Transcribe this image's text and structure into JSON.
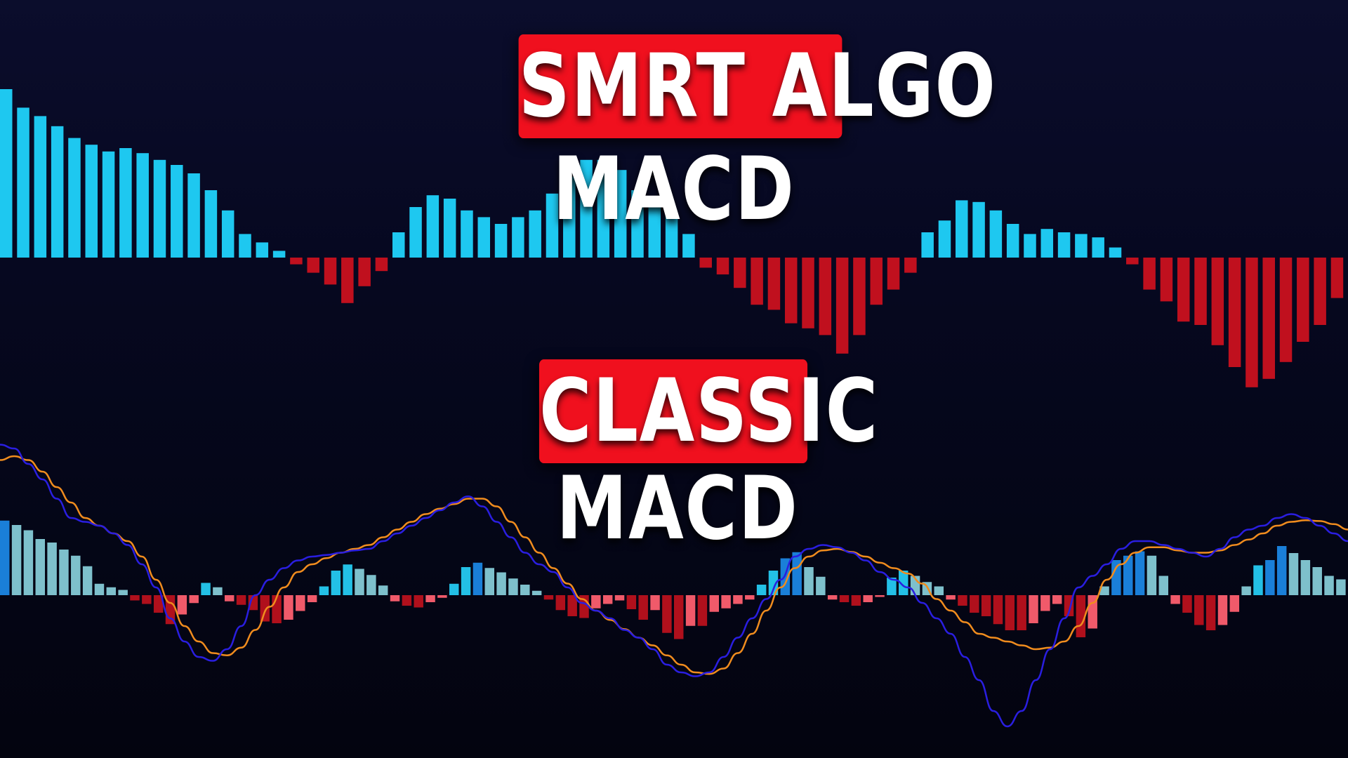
{
  "labels": {
    "top_title": "SMRT ALGO",
    "top_subtitle": "MACD",
    "bottom_title": "CLASSIC",
    "bottom_subtitle": "MACD"
  },
  "colors": {
    "positive_bar": "#1ec8f0",
    "negative_bar": "#c0101e",
    "classic_pos_strong": "#1a7fd8",
    "classic_pos": "#23c0e6",
    "classic_pos_weak": "#7ec0cc",
    "classic_neg_strong": "#b0101c",
    "classic_neg_weak": "#f05a6a",
    "macd_line": "#2a1ee0",
    "signal_line": "#f08c1e",
    "label_background": "#f0101e"
  },
  "chart_data": [
    {
      "type": "bar",
      "series": [
        {
          "name": "",
          "values": [
            100,
            89,
            84,
            78,
            71,
            67,
            63,
            65,
            62,
            58,
            55,
            50,
            40,
            28,
            14,
            9,
            4,
            -4,
            -9,
            -16,
            -27,
            -17,
            -8,
            15,
            30,
            37,
            35,
            28,
            24,
            20,
            24,
            28,
            38,
            48,
            58,
            58,
            52,
            40,
            32,
            25,
            14,
            -6,
            -10,
            -18,
            -28,
            -31,
            -39,
            -42,
            -46,
            -57,
            -46,
            -28,
            -19,
            -9,
            15,
            22,
            34,
            33,
            28,
            20,
            14,
            17,
            15,
            14,
            12,
            6,
            -4,
            -19,
            -26,
            -38,
            -40,
            -52,
            -65,
            -77,
            -72,
            -62,
            -50,
            -40,
            -24
          ]
        }
      ],
      "colors": [
        "#1ec8f0",
        "#c0101e"
      ]
    },
    {
      "type": "bar",
      "series": [
        {
          "name": "",
          "values": [
            85,
            80,
            74,
            64,
            60,
            52,
            45,
            33,
            13,
            9,
            6,
            -6,
            -10,
            -20,
            -33,
            -22,
            -9,
            14,
            9,
            -7,
            -11,
            -17,
            -30,
            -32,
            -28,
            -18,
            -8,
            10,
            28,
            35,
            30,
            23,
            11,
            -7,
            -12,
            -14,
            -8,
            -3,
            13,
            32,
            37,
            31,
            26,
            19,
            12,
            5,
            -5,
            -17,
            -24,
            -26,
            -15,
            -10,
            -6,
            -16,
            -28,
            -17,
            -43,
            -50,
            -35,
            -35,
            -19,
            -15,
            -10,
            -5,
            12,
            28,
            42,
            49,
            32,
            21,
            -5,
            -8,
            -12,
            -8,
            -2,
            20,
            28,
            22,
            15,
            10,
            -5,
            -12,
            -20,
            -24,
            -33,
            -40,
            -40,
            -32,
            -18,
            -10,
            -24,
            -48,
            -38,
            10,
            40,
            45,
            50,
            45,
            22,
            -10,
            -20,
            -34,
            -40,
            -34,
            -19,
            10,
            34,
            40,
            56,
            48,
            40,
            32,
            22,
            18
          ]
        },
        {
          "name": "",
          "type": "line",
          "values": [
            195,
            190,
            170,
            150,
            125,
            100,
            95,
            90,
            80,
            65,
            40,
            10,
            -30,
            -60,
            -80,
            -85,
            -70,
            -40,
            0,
            20,
            35,
            45,
            50,
            52,
            55,
            58,
            60,
            70,
            80,
            90,
            100,
            110,
            120,
            128,
            115,
            95,
            75,
            55,
            40,
            30,
            10,
            -10,
            -20,
            -30,
            -45,
            -55,
            -70,
            -90,
            -100,
            -105,
            -100,
            -80,
            -55,
            -30,
            -5,
            20,
            50,
            60,
            65,
            62,
            55,
            45,
            30,
            20,
            10,
            -10,
            -30,
            -50,
            -80,
            -110,
            -150,
            -170,
            -150,
            -110,
            -70,
            -30,
            10,
            25,
            40,
            60,
            70,
            70,
            65,
            60,
            55,
            50,
            60,
            75,
            85,
            90,
            100,
            105,
            100,
            90,
            80,
            70
          ]
        },
        {
          "name": "",
          "type": "line",
          "values": [
            175,
            180,
            175,
            160,
            140,
            120,
            100,
            90,
            80,
            70,
            50,
            20,
            -10,
            -40,
            -60,
            -75,
            -78,
            -68,
            -45,
            -15,
            10,
            30,
            40,
            48,
            55,
            60,
            65,
            75,
            85,
            95,
            105,
            112,
            118,
            125,
            125,
            115,
            95,
            75,
            55,
            35,
            15,
            -5,
            -20,
            -32,
            -44,
            -55,
            -65,
            -78,
            -90,
            -100,
            -102,
            -95,
            -75,
            -50,
            -20,
            10,
            35,
            50,
            58,
            60,
            56,
            50,
            42,
            35,
            28,
            15,
            -5,
            -20,
            -35,
            -50,
            -55,
            -60,
            -65,
            -70,
            -68,
            -60,
            -40,
            -10,
            20,
            40,
            55,
            62,
            62,
            58,
            55,
            55,
            58,
            65,
            72,
            80,
            90,
            95,
            97,
            96,
            92,
            85
          ]
        }
      ],
      "colors": [
        "#1a7fd8",
        "#23c0e6",
        "#7ec0cc",
        "#b0101c",
        "#f05a6a",
        "#2a1ee0",
        "#f08c1e"
      ]
    }
  ]
}
